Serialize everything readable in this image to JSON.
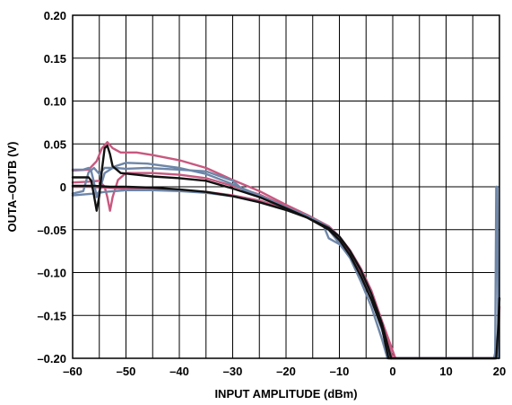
{
  "chart_data": {
    "type": "line",
    "title": "",
    "xlabel": "INPUT AMPLITUDE (dBm)",
    "ylabel": "OUTA–OUTB (V)",
    "xlim": [
      -60,
      20
    ],
    "ylim": [
      -0.2,
      0.2
    ],
    "x_ticks": [
      -60,
      -50,
      -40,
      -30,
      -20,
      -10,
      0,
      10,
      20
    ],
    "x_tick_labels": [
      "–60",
      "–50",
      "–40",
      "–30",
      "–20",
      "–10",
      "0",
      "10",
      "20"
    ],
    "y_ticks": [
      0.2,
      0.15,
      0.1,
      0.05,
      0,
      -0.05,
      -0.1,
      -0.15,
      -0.2
    ],
    "y_tick_labels": [
      "0.20",
      "0.15",
      "0.10",
      "0.05",
      "0",
      "–0.05",
      "–0.10",
      "–0.15",
      "–0.20"
    ],
    "x_minor_step": 5,
    "y_minor_step": 0.05,
    "grid": true,
    "legend": "none",
    "series": [
      {
        "color": "#c8587f",
        "points": [
          [
            -60,
            0.019
          ],
          [
            -57,
            0.02
          ],
          [
            -55.5,
            0.03
          ],
          [
            -54.5,
            0.045
          ],
          [
            -53.5,
            0.052
          ],
          [
            -52.5,
            0.045
          ],
          [
            -51,
            0.04
          ],
          [
            -48,
            0.04
          ],
          [
            -45,
            0.037
          ],
          [
            -40,
            0.031
          ],
          [
            -35,
            0.022
          ],
          [
            -30,
            0.008
          ],
          [
            -25,
            -0.005
          ],
          [
            -20,
            -0.021
          ],
          [
            -16,
            -0.033
          ],
          [
            -12,
            -0.048
          ],
          [
            -10,
            -0.06
          ],
          [
            -8,
            -0.078
          ],
          [
            -6,
            -0.1
          ],
          [
            -4,
            -0.125
          ],
          [
            -2,
            -0.16
          ],
          [
            0,
            -0.2
          ],
          [
            19,
            -0.2
          ],
          [
            19.8,
            -0.175
          ],
          [
            20,
            -0.14
          ]
        ]
      },
      {
        "color": "#c8587f",
        "points": [
          [
            -60,
            0.005
          ],
          [
            -57,
            0.006
          ],
          [
            -55,
            0.007
          ],
          [
            -54,
            0.0
          ],
          [
            -53.5,
            -0.012
          ],
          [
            -53,
            -0.028
          ],
          [
            -52.5,
            -0.012
          ],
          [
            -51.5,
            0.008
          ],
          [
            -50,
            0.016
          ],
          [
            -45,
            0.016
          ],
          [
            -40,
            0.014
          ],
          [
            -35,
            0.01
          ],
          [
            -30,
            0.001
          ],
          [
            -25,
            -0.009
          ],
          [
            -20,
            -0.023
          ],
          [
            -16,
            -0.033
          ],
          [
            -12,
            -0.046
          ],
          [
            -10,
            -0.058
          ],
          [
            -8,
            -0.074
          ],
          [
            -6,
            -0.095
          ],
          [
            -4,
            -0.121
          ],
          [
            -2,
            -0.157
          ],
          [
            0.5,
            -0.2
          ]
        ]
      },
      {
        "color": "#c8587f",
        "points": [
          [
            -60,
            0.0
          ],
          [
            -57,
            0.0
          ],
          [
            -54,
            -0.001
          ],
          [
            -50,
            -0.002
          ],
          [
            -45,
            -0.003
          ],
          [
            -40,
            -0.004
          ],
          [
            -35,
            -0.006
          ],
          [
            -30,
            -0.01
          ],
          [
            -25,
            -0.016
          ],
          [
            -20,
            -0.026
          ],
          [
            -16,
            -0.036
          ],
          [
            -12,
            -0.049
          ],
          [
            -10,
            -0.06
          ],
          [
            -8,
            -0.077
          ],
          [
            -6,
            -0.098
          ],
          [
            -4,
            -0.125
          ],
          [
            -2,
            -0.16
          ],
          [
            -0.2,
            -0.2
          ]
        ]
      },
      {
        "color": "#6e86a8",
        "points": [
          [
            -60,
            -0.008
          ],
          [
            -58,
            -0.005
          ],
          [
            -57,
            0.017
          ],
          [
            -56,
            0.022
          ],
          [
            -55,
            0.015
          ],
          [
            -54,
            0.022
          ],
          [
            -52,
            0.022
          ],
          [
            -50,
            0.021
          ],
          [
            -46,
            0.022
          ],
          [
            -40,
            0.02
          ],
          [
            -35,
            0.018
          ],
          [
            -30,
            0.007
          ],
          [
            -28,
            -0.004
          ],
          [
            -25,
            -0.01
          ],
          [
            -20,
            -0.024
          ],
          [
            -16,
            -0.036
          ],
          [
            -13,
            -0.045
          ],
          [
            -12,
            -0.06
          ],
          [
            -10,
            -0.067
          ],
          [
            -8,
            -0.081
          ],
          [
            -6,
            -0.104
          ],
          [
            -4,
            -0.132
          ],
          [
            -2,
            -0.167
          ],
          [
            -0.5,
            -0.2
          ],
          [
            19.2,
            -0.2
          ],
          [
            19.4,
            0.0
          ],
          [
            19.6,
            0.0
          ],
          [
            19.8,
            -0.2
          ]
        ]
      },
      {
        "color": "#6e86a8",
        "points": [
          [
            -60,
            0.02
          ],
          [
            -58,
            0.02
          ],
          [
            -57,
            0.022
          ],
          [
            -56.5,
            0.018
          ],
          [
            -56,
            0.005
          ],
          [
            -55.5,
            -0.012
          ],
          [
            -55,
            -0.005
          ],
          [
            -54,
            0.016
          ],
          [
            -52,
            0.024
          ],
          [
            -50,
            0.028
          ],
          [
            -46,
            0.027
          ],
          [
            -40,
            0.022
          ],
          [
            -35,
            0.015
          ],
          [
            -30,
            0.003
          ],
          [
            -25,
            -0.01
          ],
          [
            -20,
            -0.024
          ],
          [
            -16,
            -0.034
          ],
          [
            -12,
            -0.047
          ],
          [
            -10,
            -0.058
          ],
          [
            -8,
            -0.075
          ],
          [
            -6,
            -0.097
          ],
          [
            -4,
            -0.125
          ],
          [
            -2,
            -0.16
          ],
          [
            -0.3,
            -0.2
          ]
        ]
      },
      {
        "color": "#6e86a8",
        "points": [
          [
            -60,
            -0.01
          ],
          [
            -56,
            -0.008
          ],
          [
            -54,
            -0.006
          ],
          [
            -50,
            -0.004
          ],
          [
            -45,
            -0.004
          ],
          [
            -40,
            -0.005
          ],
          [
            -35,
            -0.007
          ],
          [
            -30,
            -0.011
          ],
          [
            -25,
            -0.018
          ],
          [
            -20,
            -0.027
          ],
          [
            -16,
            -0.036
          ],
          [
            -14,
            -0.04
          ],
          [
            -12,
            -0.05
          ],
          [
            -10,
            -0.066
          ],
          [
            -8,
            -0.083
          ],
          [
            -6,
            -0.11
          ],
          [
            -4,
            -0.14
          ],
          [
            -2,
            -0.178
          ],
          [
            -1,
            -0.2
          ]
        ]
      },
      {
        "color": "#111111",
        "points": [
          [
            -60,
            0.011
          ],
          [
            -57,
            0.011
          ],
          [
            -56.5,
            0.007
          ],
          [
            -56,
            -0.01
          ],
          [
            -55.5,
            -0.028
          ],
          [
            -55,
            -0.01
          ],
          [
            -54.5,
            0.02
          ],
          [
            -54,
            0.045
          ],
          [
            -53.5,
            0.048
          ],
          [
            -53,
            0.038
          ],
          [
            -52.5,
            0.024
          ],
          [
            -51,
            0.016
          ],
          [
            -48,
            0.014
          ],
          [
            -45,
            0.012
          ],
          [
            -40,
            0.01
          ],
          [
            -35,
            0.007
          ],
          [
            -30,
            -0.002
          ],
          [
            -25,
            -0.012
          ],
          [
            -20,
            -0.025
          ],
          [
            -16,
            -0.036
          ],
          [
            -12,
            -0.05
          ],
          [
            -10,
            -0.062
          ],
          [
            -8,
            -0.08
          ],
          [
            -6,
            -0.104
          ],
          [
            -4,
            -0.132
          ],
          [
            -2,
            -0.165
          ],
          [
            -0.8,
            -0.2
          ],
          [
            19.4,
            -0.2
          ],
          [
            19.7,
            -0.17
          ],
          [
            20,
            -0.13
          ]
        ]
      },
      {
        "color": "#111111",
        "points": [
          [
            -60,
            0.001
          ],
          [
            -56,
            0.001
          ],
          [
            -53,
            0.0
          ],
          [
            -50,
            0.0
          ],
          [
            -45,
            -0.001
          ],
          [
            -40,
            -0.003
          ],
          [
            -35,
            -0.006
          ],
          [
            -30,
            -0.011
          ],
          [
            -25,
            -0.018
          ],
          [
            -20,
            -0.027
          ],
          [
            -16,
            -0.036
          ],
          [
            -12,
            -0.048
          ],
          [
            -10,
            -0.058
          ],
          [
            -8,
            -0.075
          ],
          [
            -6,
            -0.097
          ],
          [
            -4,
            -0.125
          ],
          [
            -2,
            -0.16
          ],
          [
            -0.3,
            -0.2
          ]
        ]
      }
    ]
  }
}
